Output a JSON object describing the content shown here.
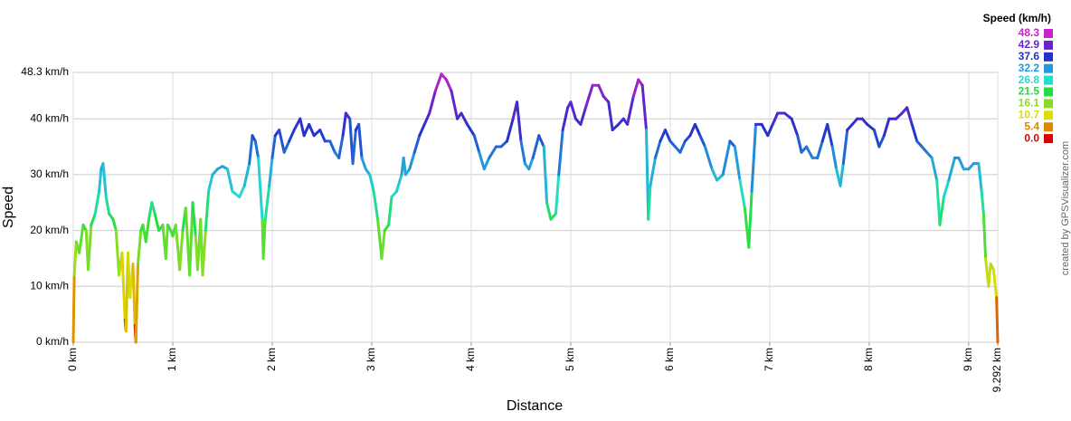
{
  "chart_data": {
    "type": "line",
    "x_label": "Distance",
    "y_label": "Speed",
    "legend_title": "Speed (km/h)",
    "credit": "created by GPSVisualizer.com",
    "xlim": [
      0,
      9.292
    ],
    "ylim": [
      0,
      48.3
    ],
    "grid": true,
    "xticks": [
      {
        "value": 0,
        "label": "0 km"
      },
      {
        "value": 1,
        "label": "1 km"
      },
      {
        "value": 2,
        "label": "2 km"
      },
      {
        "value": 3,
        "label": "3 km"
      },
      {
        "value": 4,
        "label": "4 km"
      },
      {
        "value": 5,
        "label": "5 km"
      },
      {
        "value": 6,
        "label": "6 km"
      },
      {
        "value": 7,
        "label": "7 km"
      },
      {
        "value": 8,
        "label": "8 km"
      },
      {
        "value": 9,
        "label": "9 km"
      },
      {
        "value": 9.292,
        "label": "9.292 km"
      }
    ],
    "yticks": [
      {
        "value": 0,
        "label": "0 km/h"
      },
      {
        "value": 10,
        "label": "10 km/h"
      },
      {
        "value": 20,
        "label": "20 km/h"
      },
      {
        "value": 30,
        "label": "30 km/h"
      },
      {
        "value": 40,
        "label": "40 km/h"
      },
      {
        "value": 48.3,
        "label": "48.3 km/h"
      }
    ],
    "color_scale": [
      {
        "value": 48.3,
        "color": "#cc22cc"
      },
      {
        "value": 42.9,
        "color": "#6a22cc"
      },
      {
        "value": 37.6,
        "color": "#2233cc"
      },
      {
        "value": 32.2,
        "color": "#2299dd"
      },
      {
        "value": 26.8,
        "color": "#22ddcc"
      },
      {
        "value": 21.5,
        "color": "#22dd44"
      },
      {
        "value": 16.1,
        "color": "#88dd22"
      },
      {
        "value": 10.7,
        "color": "#dddd00"
      },
      {
        "value": 5.4,
        "color": "#dd8800"
      },
      {
        "value": 0,
        "label": "0.0",
        "color": "#dd0000"
      }
    ],
    "x": [
      0,
      0.01,
      0.03,
      0.06,
      0.1,
      0.13,
      0.15,
      0.18,
      0.22,
      0.26,
      0.28,
      0.3,
      0.33,
      0.36,
      0.4,
      0.43,
      0.46,
      0.49,
      0.52,
      0.53,
      0.55,
      0.57,
      0.6,
      0.62,
      0.63,
      0.65,
      0.68,
      0.7,
      0.73,
      0.76,
      0.79,
      0.82,
      0.86,
      0.9,
      0.93,
      0.95,
      0.98,
      1.0,
      1.03,
      1.07,
      1.1,
      1.13,
      1.17,
      1.2,
      1.23,
      1.25,
      1.28,
      1.3,
      1.33,
      1.36,
      1.4,
      1.45,
      1.5,
      1.55,
      1.6,
      1.67,
      1.72,
      1.77,
      1.8,
      1.83,
      1.86,
      1.9,
      1.91,
      1.93,
      1.97,
      2.0,
      2.03,
      2.07,
      2.12,
      2.17,
      2.22,
      2.28,
      2.32,
      2.37,
      2.42,
      2.48,
      2.53,
      2.58,
      2.63,
      2.67,
      2.71,
      2.74,
      2.78,
      2.81,
      2.84,
      2.87,
      2.9,
      2.94,
      2.98,
      3.02,
      3.06,
      3.1,
      3.13,
      3.17,
      3.2,
      3.25,
      3.3,
      3.32,
      3.34,
      3.38,
      3.43,
      3.48,
      3.53,
      3.58,
      3.64,
      3.7,
      3.75,
      3.8,
      3.86,
      3.9,
      3.96,
      4.03,
      4.08,
      4.13,
      4.18,
      4.25,
      4.3,
      4.36,
      4.42,
      4.46,
      4.5,
      4.54,
      4.58,
      4.62,
      4.68,
      4.73,
      4.76,
      4.8,
      4.85,
      4.88,
      4.92,
      4.97,
      5.0,
      5.05,
      5.1,
      5.15,
      5.22,
      5.28,
      5.33,
      5.38,
      5.42,
      5.48,
      5.53,
      5.57,
      5.63,
      5.68,
      5.72,
      5.76,
      5.78,
      5.8,
      5.85,
      5.9,
      5.95,
      6.0,
      6.05,
      6.1,
      6.15,
      6.2,
      6.25,
      6.3,
      6.35,
      6.42,
      6.47,
      6.53,
      6.6,
      6.65,
      6.7,
      6.75,
      6.79,
      6.82,
      6.86,
      6.92,
      6.98,
      7.03,
      7.08,
      7.15,
      7.22,
      7.28,
      7.32,
      7.37,
      7.43,
      7.48,
      7.53,
      7.58,
      7.63,
      7.67,
      7.71,
      7.74,
      7.78,
      7.83,
      7.88,
      7.93,
      7.98,
      8.05,
      8.1,
      8.15,
      8.2,
      8.27,
      8.33,
      8.38,
      8.43,
      8.48,
      8.53,
      8.58,
      8.63,
      8.68,
      8.71,
      8.75,
      8.8,
      8.86,
      8.9,
      8.95,
      9.0,
      9.05,
      9.1,
      9.13,
      9.15,
      9.17,
      9.2,
      9.22,
      9.25,
      9.28,
      9.292
    ],
    "values": [
      0,
      12,
      18,
      16,
      21,
      20,
      13,
      21,
      23,
      27,
      31,
      32,
      26,
      23,
      22,
      20,
      12,
      16,
      4,
      2,
      16,
      8,
      14,
      3,
      0,
      14,
      20,
      21,
      18,
      22,
      25,
      23,
      20,
      21,
      15,
      21,
      20,
      19,
      21,
      13,
      20,
      24,
      12,
      25,
      19,
      13,
      22,
      12,
      20,
      27,
      30,
      31,
      31.5,
      31,
      27,
      26,
      28,
      32,
      37,
      36,
      33,
      22,
      15,
      22,
      28,
      33,
      37,
      38,
      34,
      36,
      38,
      40,
      37,
      39,
      37,
      38,
      36,
      36,
      34,
      33,
      37,
      41,
      40,
      32,
      38,
      39,
      33,
      31,
      30,
      27,
      22,
      15,
      20,
      21,
      26,
      27,
      30,
      33,
      30,
      31,
      34,
      37,
      39,
      41,
      45,
      48,
      47,
      45,
      40,
      41,
      39,
      37,
      34,
      31,
      33,
      35,
      35,
      36,
      40,
      43,
      36,
      32,
      31,
      33,
      37,
      35,
      25,
      22,
      23,
      30,
      38,
      42,
      43,
      40,
      39,
      42,
      46,
      46,
      44,
      43,
      38,
      39,
      40,
      39,
      44,
      47,
      46,
      38,
      22,
      28,
      33,
      36,
      38,
      36,
      35,
      34,
      36,
      37,
      39,
      37,
      35,
      31,
      29,
      30,
      36,
      35,
      29,
      24,
      17,
      27,
      39,
      39,
      37,
      39,
      41,
      41,
      40,
      37,
      34,
      35,
      33,
      33,
      36,
      39,
      35,
      31,
      28,
      32,
      38,
      39,
      40,
      40,
      39,
      38,
      35,
      37,
      40,
      40,
      41,
      42,
      39,
      36,
      35,
      34,
      33,
      29,
      21,
      26,
      29,
      33,
      33,
      31,
      31,
      32,
      32,
      27,
      23,
      15,
      10,
      14,
      13,
      8,
      0
    ]
  }
}
